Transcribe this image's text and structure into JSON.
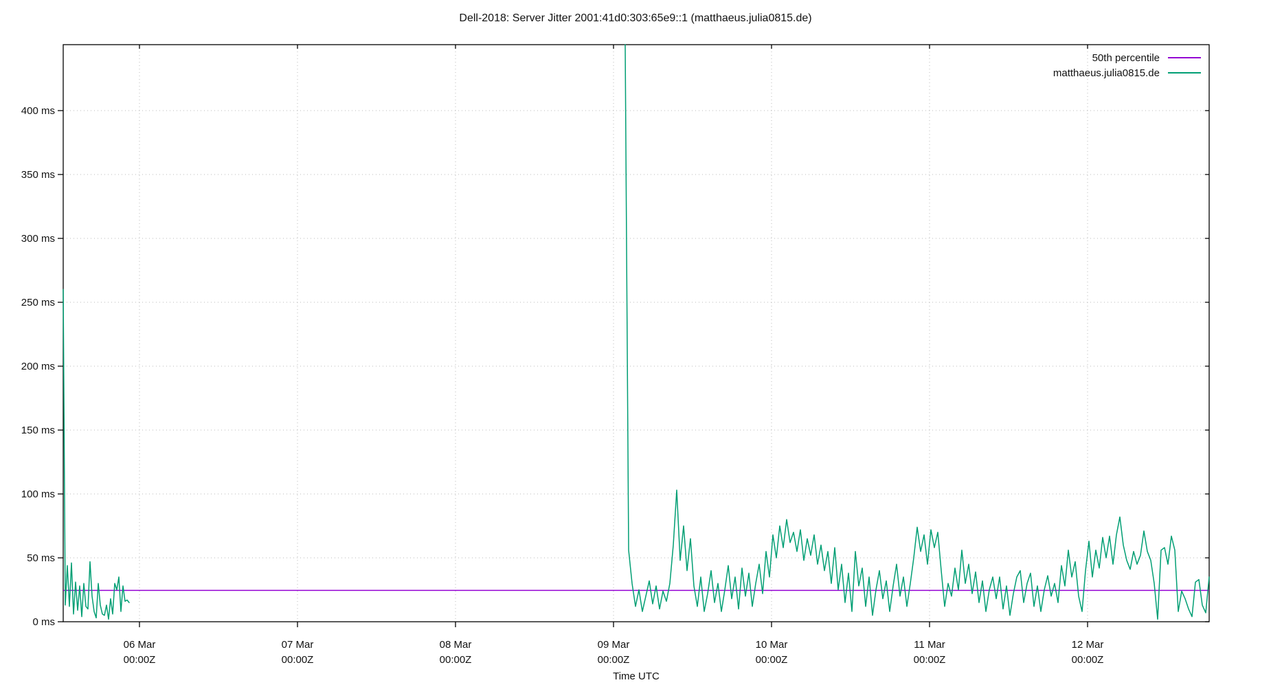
{
  "chart_data": {
    "type": "line",
    "title": "Dell-2018: Server Jitter 2001:41d0:303:65e9::1 (matthaeus.julia0815.de)",
    "xlabel": "Time UTC",
    "ylabel": "",
    "grid": "dotted",
    "plot_background": "#ffffff",
    "ylim_ms": [
      0,
      451
    ],
    "y_ticks": [
      {
        "value": 0,
        "label": "0 ms"
      },
      {
        "value": 50,
        "label": "50 ms"
      },
      {
        "value": 100,
        "label": "100 ms"
      },
      {
        "value": 150,
        "label": "150 ms"
      },
      {
        "value": 200,
        "label": "200 ms"
      },
      {
        "value": 250,
        "label": "250 ms"
      },
      {
        "value": 300,
        "label": "300 ms"
      },
      {
        "value": 350,
        "label": "350 ms"
      },
      {
        "value": 400,
        "label": "400 ms"
      }
    ],
    "xlim_days_rel_06mar": [
      -0.483,
      6.77
    ],
    "x_ticks": [
      {
        "day_offset": 0,
        "line1": "06 Mar",
        "line2": "00:00Z"
      },
      {
        "day_offset": 1,
        "line1": "07 Mar",
        "line2": "00:00Z"
      },
      {
        "day_offset": 2,
        "line1": "08 Mar",
        "line2": "00:00Z"
      },
      {
        "day_offset": 3,
        "line1": "09 Mar",
        "line2": "00:00Z"
      },
      {
        "day_offset": 4,
        "line1": "10 Mar",
        "line2": "00:00Z"
      },
      {
        "day_offset": 5,
        "line1": "11 Mar",
        "line2": "00:00Z"
      },
      {
        "day_offset": 6,
        "line1": "12 Mar",
        "line2": "00:00Z"
      }
    ],
    "legend": {
      "position": "top-right-inside",
      "entries": [
        {
          "label": "50th percentile",
          "color": "#9400d3"
        },
        {
          "label": "matthaeus.julia0815.de",
          "color": "#009e73"
        }
      ]
    },
    "series": [
      {
        "name": "50th percentile",
        "type": "hline",
        "value_ms": 24.5,
        "color": "#9400d3"
      },
      {
        "name": "matthaeus.julia0815.de",
        "type": "line",
        "color": "#009e73",
        "gap_note": "no data between 05 Mar ~22:30Z and 09 Mar ~01:45Z",
        "segments": [
          {
            "note": "left burst, spike ~260 ms at plot left edge (05 Mar ~12:25Z)",
            "start_days_rel_06mar": -0.4826,
            "step_days": 0.0130435,
            "values_ms": [
              260,
              13,
              44,
              12,
              46,
              6,
              31,
              9,
              28,
              4,
              30,
              12,
              10,
              47,
              20,
              8,
              3,
              30,
              13,
              6,
              5,
              13,
              2,
              18,
              6,
              30,
              25,
              35,
              8,
              28,
              16,
              17,
              15
            ]
          },
          {
            "note": "resumes 09 Mar ~01:45Z with spike clipped above ~450 ms; runs to right edge 12 Mar ~18:30Z",
            "start_days_rel_06mar": 3.0739,
            "step_days": 0.0217391,
            "values_ms": [
              455,
              56,
              30,
              12,
              25,
              8,
              20,
              32,
              14,
              28,
              10,
              24,
              16,
              30,
              60,
              103,
              48,
              75,
              40,
              65,
              28,
              12,
              35,
              8,
              22,
              40,
              15,
              30,
              8,
              25,
              44,
              18,
              35,
              10,
              42,
              20,
              38,
              12,
              30,
              45,
              22,
              55,
              35,
              68,
              50,
              75,
              58,
              80,
              62,
              70,
              55,
              72,
              48,
              65,
              52,
              68,
              45,
              60,
              40,
              55,
              30,
              58,
              25,
              45,
              15,
              38,
              8,
              55,
              28,
              42,
              12,
              35,
              5,
              25,
              40,
              18,
              32,
              8,
              28,
              45,
              20,
              35,
              12,
              30,
              50,
              74,
              55,
              68,
              45,
              72,
              58,
              70,
              40,
              12,
              30,
              20,
              42,
              25,
              56,
              30,
              45,
              22,
              39,
              15,
              32,
              8,
              25,
              35,
              18,
              35,
              10,
              28,
              5,
              22,
              35,
              40,
              15,
              30,
              38,
              12,
              28,
              8,
              25,
              36,
              20,
              30,
              15,
              44,
              28,
              56,
              35,
              47,
              20,
              8,
              40,
              63,
              35,
              56,
              42,
              66,
              50,
              67,
              45,
              68,
              82,
              60,
              48,
              41,
              55,
              45,
              52,
              71,
              55,
              48,
              30,
              2,
              56,
              58,
              45,
              67,
              56,
              8,
              24,
              18,
              10,
              4,
              31,
              33,
              13,
              7,
              35
            ]
          }
        ]
      }
    ],
    "colors": {
      "axis": "#000000",
      "grid": "#b8b8b8",
      "text": "#111111"
    }
  }
}
